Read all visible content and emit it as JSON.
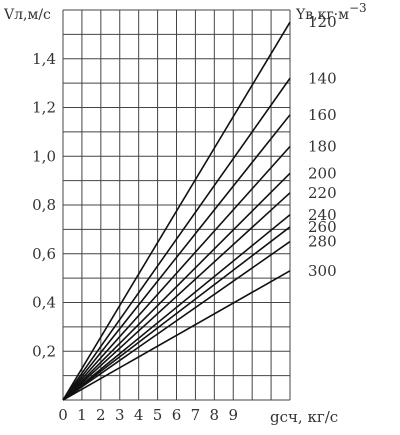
{
  "chart_data": {
    "type": "line",
    "title": "",
    "ylabel": "Vл,м/с",
    "xlabel": "gсч, кг/с",
    "legend_title": "Yв,кг·м",
    "legend_title_exp": "−3",
    "xlim": [
      0,
      12
    ],
    "ylim": [
      0,
      1.6
    ],
    "x_ticks": [
      "0",
      "1",
      "2",
      "3",
      "4",
      "5",
      "6",
      "7",
      "8",
      "9"
    ],
    "y_ticks": [
      "0,2",
      "0,4",
      "0,6",
      "0,8",
      "1,0",
      "1,2",
      "1,4"
    ],
    "grid": true,
    "series": [
      {
        "name": "120",
        "x": [
          0,
          12
        ],
        "y": [
          0,
          1.55
        ]
      },
      {
        "name": "140",
        "x": [
          0,
          12
        ],
        "y": [
          0,
          1.32
        ]
      },
      {
        "name": "160",
        "x": [
          0,
          12
        ],
        "y": [
          0,
          1.17
        ]
      },
      {
        "name": "180",
        "x": [
          0,
          12
        ],
        "y": [
          0,
          1.04
        ]
      },
      {
        "name": "200",
        "x": [
          0,
          12
        ],
        "y": [
          0,
          0.93
        ]
      },
      {
        "name": "220",
        "x": [
          0,
          12
        ],
        "y": [
          0,
          0.85
        ]
      },
      {
        "name": "240",
        "x": [
          0,
          12
        ],
        "y": [
          0,
          0.76
        ]
      },
      {
        "name": "260",
        "x": [
          0,
          12
        ],
        "y": [
          0,
          0.71
        ]
      },
      {
        "name": "280",
        "x": [
          0,
          12
        ],
        "y": [
          0,
          0.65
        ]
      },
      {
        "name": "300",
        "x": [
          0,
          12
        ],
        "y": [
          0,
          0.53
        ]
      }
    ]
  }
}
